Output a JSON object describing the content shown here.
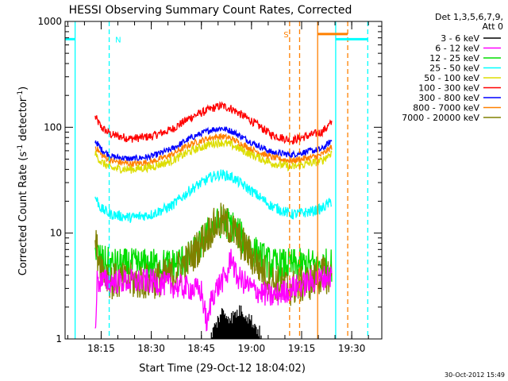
{
  "chart_data": {
    "type": "line",
    "title": "HESSI Observing Summary Count Rates, Corrected",
    "ylabel": "Corrected Count Rate (s",
    "ylabel_sup": "-1",
    "ylabel_tail": " detector",
    "ylabel_end": ")",
    "xlabel": "Start Time (29-Oct-12 18:04:02)",
    "timestamp": "30-Oct-2012 15:49",
    "y_scale": "log",
    "ylim": [
      1,
      1000
    ],
    "xlim_minutes": [
      18.07,
      19.65
    ],
    "y_ticks": [
      {
        "value": 1,
        "label": "1"
      },
      {
        "value": 10,
        "label": "10"
      },
      {
        "value": 100,
        "label": "100"
      },
      {
        "value": 1000,
        "label": "1000"
      }
    ],
    "x_ticks": [
      {
        "t": 18.25,
        "label": "18:15"
      },
      {
        "t": 18.5,
        "label": "18:30"
      },
      {
        "t": 18.75,
        "label": "18:45"
      },
      {
        "t": 19.0,
        "label": "19:00"
      },
      {
        "t": 19.25,
        "label": "19:15"
      },
      {
        "t": 19.5,
        "label": "19:30"
      }
    ],
    "legend": {
      "placement": "right",
      "header": [
        "Det 1,3,5,6,7,9,",
        "Att 0"
      ],
      "entries": [
        {
          "label": "3 - 6 keV",
          "color": "#000000"
        },
        {
          "label": "6 - 12 keV",
          "color": "#ff00ff"
        },
        {
          "label": "12 - 25 keV",
          "color": "#00dd00"
        },
        {
          "label": "25 - 50 keV",
          "color": "#00ffff"
        },
        {
          "label": "50 - 100 keV",
          "color": "#dddd00"
        },
        {
          "label": "100 - 300 keV",
          "color": "#ff0000"
        },
        {
          "label": "300 - 800 keV",
          "color": "#0000ff"
        },
        {
          "label": "800 - 7000 keV",
          "color": "#ff8000"
        },
        {
          "label": "7000 - 20000 keV",
          "color": "#808000"
        }
      ]
    },
    "data_interval": [
      18.22,
      19.41
    ],
    "series": [
      {
        "name": "100 - 300 keV",
        "color": "#ff0000",
        "noise": 0.04,
        "points": [
          [
            18.22,
            125
          ],
          [
            18.25,
            100
          ],
          [
            18.3,
            85
          ],
          [
            18.4,
            78
          ],
          [
            18.5,
            82
          ],
          [
            18.6,
            95
          ],
          [
            18.7,
            125
          ],
          [
            18.8,
            150
          ],
          [
            18.85,
            160
          ],
          [
            18.9,
            150
          ],
          [
            19.0,
            115
          ],
          [
            19.1,
            85
          ],
          [
            19.2,
            75
          ],
          [
            19.3,
            85
          ],
          [
            19.35,
            90
          ],
          [
            19.4,
            110
          ]
        ]
      },
      {
        "name": "300 - 800 keV",
        "color": "#0000ff",
        "noise": 0.03,
        "points": [
          [
            18.22,
            75
          ],
          [
            18.25,
            62
          ],
          [
            18.3,
            53
          ],
          [
            18.4,
            50
          ],
          [
            18.5,
            53
          ],
          [
            18.6,
            62
          ],
          [
            18.7,
            80
          ],
          [
            18.8,
            95
          ],
          [
            18.85,
            98
          ],
          [
            18.9,
            92
          ],
          [
            19.0,
            72
          ],
          [
            19.1,
            58
          ],
          [
            19.2,
            55
          ],
          [
            19.3,
            60
          ],
          [
            19.35,
            62
          ],
          [
            19.4,
            75
          ]
        ]
      },
      {
        "name": "800 - 7000 keV",
        "color": "#ff8000",
        "noise": 0.03,
        "points": [
          [
            18.22,
            66
          ],
          [
            18.25,
            55
          ],
          [
            18.3,
            48
          ],
          [
            18.4,
            45
          ],
          [
            18.5,
            47
          ],
          [
            18.6,
            55
          ],
          [
            18.7,
            70
          ],
          [
            18.8,
            80
          ],
          [
            18.85,
            82
          ],
          [
            18.9,
            78
          ],
          [
            19.0,
            62
          ],
          [
            19.1,
            52
          ],
          [
            19.2,
            48
          ],
          [
            19.3,
            52
          ],
          [
            19.35,
            55
          ],
          [
            19.4,
            65
          ]
        ]
      },
      {
        "name": "50 - 100 keV",
        "color": "#dddd00",
        "noise": 0.04,
        "points": [
          [
            18.22,
            56
          ],
          [
            18.25,
            47
          ],
          [
            18.3,
            41
          ],
          [
            18.4,
            40
          ],
          [
            18.5,
            42
          ],
          [
            18.6,
            48
          ],
          [
            18.7,
            60
          ],
          [
            18.8,
            70
          ],
          [
            18.85,
            72
          ],
          [
            18.9,
            68
          ],
          [
            19.0,
            55
          ],
          [
            19.1,
            46
          ],
          [
            19.2,
            42
          ],
          [
            19.3,
            46
          ],
          [
            19.35,
            48
          ],
          [
            19.4,
            58
          ]
        ]
      },
      {
        "name": "25 - 50 keV",
        "color": "#00ffff",
        "noise": 0.05,
        "points": [
          [
            18.22,
            22
          ],
          [
            18.25,
            17
          ],
          [
            18.3,
            15
          ],
          [
            18.4,
            14
          ],
          [
            18.5,
            15
          ],
          [
            18.6,
            18
          ],
          [
            18.7,
            26
          ],
          [
            18.8,
            34
          ],
          [
            18.85,
            36
          ],
          [
            18.9,
            34
          ],
          [
            19.0,
            25
          ],
          [
            19.1,
            18
          ],
          [
            19.2,
            15
          ],
          [
            19.3,
            16
          ],
          [
            19.35,
            17
          ],
          [
            19.4,
            20
          ]
        ]
      },
      {
        "name": "12 - 25 keV",
        "color": "#00dd00",
        "noise": 0.16,
        "points": [
          [
            18.22,
            7
          ],
          [
            18.25,
            5.5
          ],
          [
            18.3,
            5
          ],
          [
            18.4,
            5
          ],
          [
            18.5,
            5
          ],
          [
            18.6,
            5
          ],
          [
            18.7,
            6
          ],
          [
            18.8,
            11
          ],
          [
            18.85,
            13
          ],
          [
            18.9,
            12
          ],
          [
            19.0,
            7
          ],
          [
            19.1,
            5
          ],
          [
            19.2,
            5
          ],
          [
            19.3,
            5
          ],
          [
            19.35,
            5
          ],
          [
            19.4,
            5
          ]
        ]
      },
      {
        "name": "7000 - 20000 keV",
        "color": "#808000",
        "noise": 0.18,
        "points": [
          [
            18.22,
            8
          ],
          [
            18.25,
            5
          ],
          [
            18.3,
            3.5
          ],
          [
            18.4,
            3.5
          ],
          [
            18.5,
            3.5
          ],
          [
            18.6,
            4
          ],
          [
            18.7,
            6
          ],
          [
            18.8,
            11
          ],
          [
            18.85,
            13
          ],
          [
            18.9,
            11
          ],
          [
            19.0,
            6
          ],
          [
            19.1,
            3.5
          ],
          [
            19.2,
            3
          ],
          [
            19.3,
            3.5
          ],
          [
            19.35,
            4
          ],
          [
            19.4,
            4
          ]
        ]
      },
      {
        "name": "6 - 12 keV",
        "color": "#ff00ff",
        "noise": 0.12,
        "points": [
          [
            18.22,
            1.2
          ],
          [
            18.23,
            3.5
          ],
          [
            18.3,
            3.5
          ],
          [
            18.4,
            3.5
          ],
          [
            18.5,
            3.5
          ],
          [
            18.6,
            3.2
          ],
          [
            18.7,
            3
          ],
          [
            18.75,
            2.8
          ],
          [
            18.78,
            1.3
          ],
          [
            18.8,
            2.5
          ],
          [
            18.85,
            3.5
          ],
          [
            18.88,
            4
          ],
          [
            18.9,
            6.5
          ],
          [
            18.92,
            4
          ],
          [
            19.0,
            3
          ],
          [
            19.1,
            2.5
          ],
          [
            19.2,
            3
          ],
          [
            19.3,
            3.5
          ],
          [
            19.4,
            4
          ]
        ]
      },
      {
        "name": "3 - 6 keV",
        "color": "#000000",
        "noise": 0.0,
        "points": [
          [
            18.8,
            1.1
          ],
          [
            18.85,
            1.8
          ],
          [
            18.9,
            1.6
          ],
          [
            18.95,
            1.9
          ],
          [
            19.0,
            1.5
          ],
          [
            19.05,
            1.1
          ]
        ]
      }
    ],
    "markers": [
      {
        "t": 18.12,
        "color": "#00ffff",
        "style": "solid"
      },
      {
        "t": 18.29,
        "color": "#00ffff",
        "style": "dashed"
      },
      {
        "t": 19.19,
        "color": "#ff8000",
        "style": "dashed"
      },
      {
        "t": 19.24,
        "color": "#ff8000",
        "style": "dashed"
      },
      {
        "t": 19.33,
        "color": "#ff8000",
        "style": "solid"
      },
      {
        "t": 19.42,
        "color": "#00ffff",
        "style": "solid"
      },
      {
        "t": 19.48,
        "color": "#ff8000",
        "style": "dashed"
      },
      {
        "t": 19.58,
        "color": "#00ffff",
        "style": "dashed"
      }
    ],
    "flags": [
      {
        "from": 18.07,
        "to": 18.12,
        "value": 680,
        "color": "#00ffff"
      },
      {
        "from": 19.42,
        "to": 19.58,
        "value": 680,
        "color": "#00ffff"
      },
      {
        "from": 19.33,
        "to": 19.48,
        "value": 760,
        "color": "#ff8000"
      }
    ],
    "flag_labels": [
      {
        "t": 18.32,
        "value": 680,
        "text": "N",
        "color": "#00ffff"
      },
      {
        "t": 19.16,
        "value": 760,
        "text": "S",
        "color": "#ff8000"
      }
    ]
  }
}
